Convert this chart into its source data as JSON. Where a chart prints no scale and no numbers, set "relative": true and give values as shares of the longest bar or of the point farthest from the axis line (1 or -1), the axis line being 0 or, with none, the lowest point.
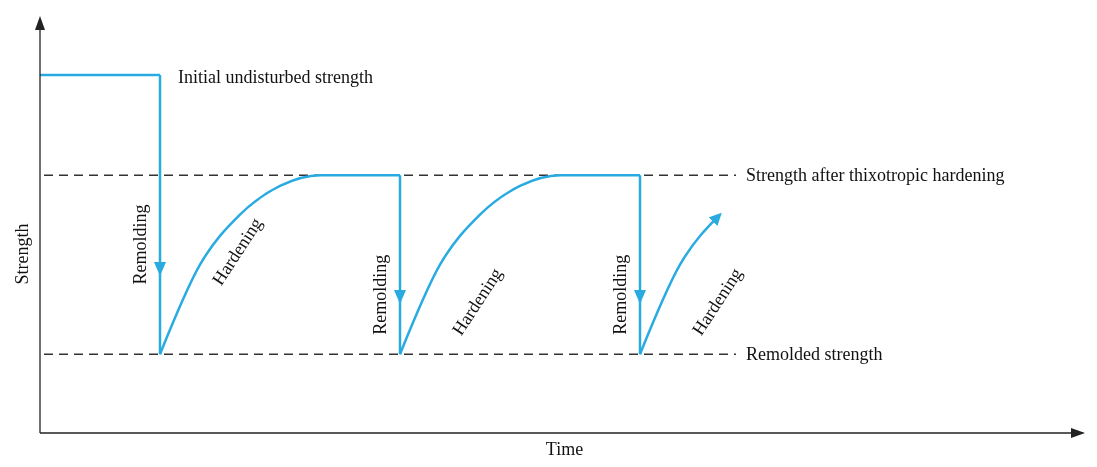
{
  "chart_data": {
    "type": "line",
    "relative": true,
    "xlabel": "Time",
    "ylabel": "Strength",
    "categories": [
      null,
      null,
      null,
      null,
      null,
      null,
      null,
      null,
      null,
      null,
      null,
      null,
      null,
      null,
      null,
      null,
      null,
      null,
      null,
      null,
      null,
      null,
      null,
      null,
      null,
      null,
      null
    ],
    "series": [
      {
        "color": "#29abe2",
        "values": [
          1,
          1,
          1,
          1,
          null,
          null,
          null,
          null,
          null,
          null,
          null,
          null,
          null,
          null,
          null,
          null,
          null,
          null,
          null,
          null,
          null,
          null,
          null,
          null,
          null,
          null,
          null
        ]
      },
      {
        "color": "#29abe2",
        "values": [
          null,
          null,
          null,
          0.22,
          0.47,
          0.61,
          0.69,
          0.72,
          0.72,
          0.72,
          null,
          null,
          null,
          null,
          null,
          null,
          null,
          null,
          null,
          null,
          null,
          null,
          null,
          null,
          null,
          null,
          null
        ]
      },
      {
        "color": "#29abe2",
        "values": [
          null,
          null,
          null,
          null,
          null,
          null,
          null,
          null,
          null,
          0.22,
          0.47,
          0.61,
          0.69,
          0.72,
          0.72,
          0.72,
          null,
          null,
          null,
          null,
          null,
          null,
          null,
          null,
          null,
          null,
          null
        ]
      },
      {
        "color": "#29abe2",
        "values": [
          null,
          null,
          null,
          null,
          null,
          null,
          null,
          null,
          null,
          null,
          null,
          null,
          null,
          null,
          null,
          0.22,
          0.47,
          0.61,
          null,
          null,
          null,
          null,
          null,
          null,
          null,
          null,
          null
        ]
      }
    ],
    "ref_lines": [
      {
        "axis": "y",
        "value": 0.72,
        "label": "Strength after thixotropic hardening",
        "color": "#333333",
        "line_style": "dashed"
      },
      {
        "axis": "y",
        "value": 0.22,
        "label": "Remolded strength",
        "color": "#333333",
        "line_style": "dashed"
      }
    ],
    "annotations": [
      "Initial undisturbed strength",
      "Remolding",
      "Hardening",
      "Remolding",
      "Hardening",
      "Remolding",
      "Hardening"
    ],
    "line_style": "solid"
  }
}
